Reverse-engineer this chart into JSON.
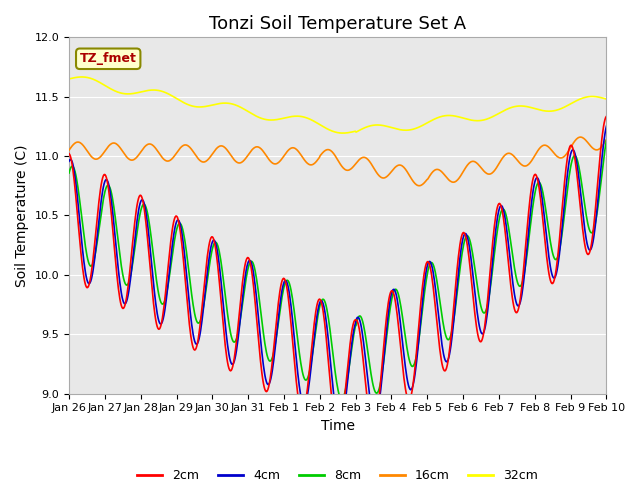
{
  "title": "Tonzi Soil Temperature Set A",
  "xlabel": "Time",
  "ylabel": "Soil Temperature (C)",
  "ylim": [
    9.0,
    12.0
  ],
  "yticks": [
    9.0,
    9.5,
    10.0,
    10.5,
    11.0,
    11.5,
    12.0
  ],
  "xtick_labels": [
    "Jan 26",
    "Jan 27",
    "Jan 28",
    "Jan 29",
    "Jan 30",
    "Jan 31",
    "Feb 1",
    "Feb 2",
    "Feb 3",
    "Feb 4",
    "Feb 5",
    "Feb 6",
    "Feb 7",
    "Feb 8",
    "Feb 9",
    "Feb 10"
  ],
  "colors": {
    "2cm": "#ff0000",
    "4cm": "#0000cc",
    "8cm": "#00cc00",
    "16cm": "#ff8800",
    "32cm": "#ffff00"
  },
  "legend_label": "TZ_fmet",
  "bg_color": "#e8e8e8",
  "title_fontsize": 13,
  "axis_fontsize": 10
}
